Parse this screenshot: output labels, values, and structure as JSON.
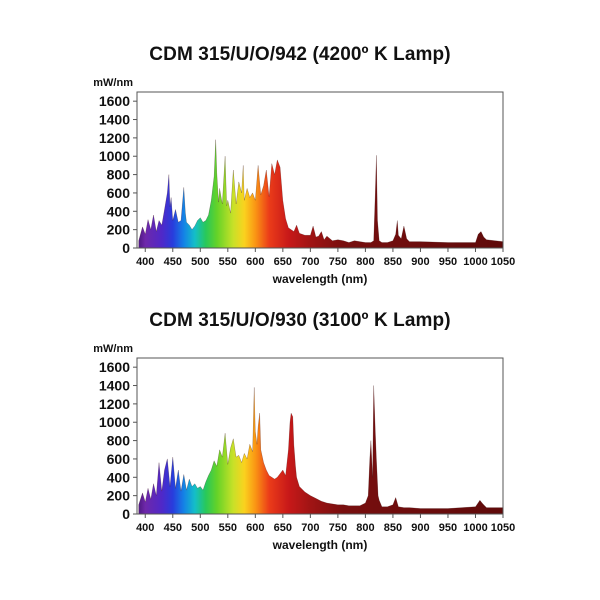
{
  "chart_data": [
    {
      "type": "area",
      "title": "CDM 315/U/O/942 (4200º K Lamp)",
      "xlabel": "wavelength (nm)",
      "ylabel": "mW/nm",
      "xlim": [
        385,
        1050
      ],
      "ylim": [
        0,
        1700
      ],
      "xticks": [
        400,
        450,
        500,
        550,
        600,
        650,
        700,
        750,
        800,
        850,
        900,
        950,
        1000,
        1050
      ],
      "yticks": [
        0,
        200,
        400,
        600,
        800,
        1000,
        1200,
        1400,
        1600
      ],
      "grid": false,
      "series": [
        {
          "x": [
            388,
            395,
            400,
            405,
            410,
            415,
            420,
            425,
            430,
            435,
            440,
            443,
            445,
            447,
            450,
            455,
            460,
            465,
            468,
            470,
            473,
            475,
            480,
            485,
            490,
            495,
            500,
            505,
            510,
            515,
            520,
            525,
            528,
            530,
            533,
            535,
            540,
            545,
            548,
            550,
            555,
            560,
            565,
            570,
            575,
            578,
            580,
            585,
            590,
            595,
            600,
            605,
            610,
            615,
            620,
            625,
            630,
            635,
            640,
            645,
            650,
            655,
            660,
            665,
            670,
            675,
            680,
            690,
            700,
            705,
            710,
            715,
            720,
            725,
            730,
            740,
            750,
            760,
            770,
            780,
            790,
            800,
            810,
            815,
            818,
            820,
            822,
            825,
            830,
            840,
            850,
            855,
            858,
            860,
            865,
            870,
            875,
            880,
            900,
            950,
            1000,
            1005,
            1010,
            1015,
            1020,
            1050
          ],
          "values": [
            80,
            230,
            150,
            310,
            200,
            360,
            180,
            300,
            250,
            420,
            600,
            800,
            450,
            550,
            300,
            420,
            280,
            300,
            520,
            660,
            380,
            280,
            250,
            200,
            240,
            300,
            330,
            280,
            300,
            360,
            520,
            780,
            1180,
            820,
            500,
            650,
            480,
            1000,
            460,
            520,
            380,
            850,
            480,
            720,
            600,
            900,
            520,
            650,
            550,
            600,
            520,
            900,
            580,
            680,
            850,
            560,
            920,
            800,
            960,
            880,
            520,
            320,
            220,
            200,
            180,
            250,
            160,
            140,
            140,
            240,
            120,
            130,
            180,
            90,
            130,
            80,
            90,
            80,
            60,
            80,
            70,
            60,
            60,
            80,
            600,
            1010,
            300,
            80,
            60,
            60,
            80,
            150,
            300,
            140,
            100,
            240,
            100,
            70,
            70,
            60,
            60,
            150,
            180,
            120,
            90,
            70
          ]
        }
      ]
    },
    {
      "type": "area",
      "title": "CDM 315/U/O/930 (3100º K Lamp)",
      "xlabel": "wavelength (nm)",
      "ylabel": "mW/nm",
      "xlim": [
        385,
        1050
      ],
      "ylim": [
        0,
        1700
      ],
      "xticks": [
        400,
        450,
        500,
        550,
        600,
        650,
        700,
        750,
        800,
        850,
        900,
        950,
        1000,
        1050
      ],
      "yticks": [
        0,
        200,
        400,
        600,
        800,
        1000,
        1200,
        1400,
        1600
      ],
      "grid": false,
      "series": [
        {
          "x": [
            388,
            395,
            400,
            405,
            410,
            415,
            420,
            425,
            430,
            435,
            440,
            445,
            450,
            455,
            460,
            465,
            470,
            475,
            480,
            485,
            490,
            495,
            500,
            505,
            510,
            515,
            520,
            525,
            530,
            535,
            540,
            545,
            550,
            555,
            560,
            565,
            570,
            575,
            580,
            585,
            590,
            595,
            598,
            600,
            603,
            605,
            608,
            610,
            615,
            620,
            625,
            630,
            635,
            640,
            645,
            650,
            655,
            660,
            663,
            665,
            668,
            670,
            673,
            675,
            680,
            690,
            700,
            710,
            720,
            730,
            740,
            750,
            760,
            770,
            780,
            790,
            800,
            805,
            808,
            810,
            813,
            815,
            818,
            820,
            823,
            825,
            830,
            840,
            850,
            855,
            860,
            870,
            880,
            900,
            950,
            1000,
            1008,
            1012,
            1015,
            1020,
            1050
          ],
          "values": [
            100,
            230,
            130,
            280,
            160,
            330,
            200,
            560,
            250,
            480,
            600,
            300,
            620,
            280,
            480,
            250,
            430,
            260,
            380,
            300,
            330,
            280,
            300,
            260,
            350,
            420,
            480,
            580,
            520,
            700,
            620,
            880,
            540,
            720,
            820,
            620,
            640,
            560,
            660,
            600,
            760,
            680,
            1380,
            900,
            760,
            950,
            1100,
            700,
            560,
            480,
            420,
            400,
            380,
            400,
            440,
            480,
            420,
            700,
            1000,
            1100,
            1060,
            750,
            520,
            400,
            300,
            240,
            200,
            170,
            140,
            120,
            110,
            100,
            100,
            90,
            90,
            90,
            120,
            200,
            600,
            800,
            400,
            1400,
            900,
            600,
            200,
            150,
            80,
            80,
            100,
            180,
            80,
            70,
            70,
            60,
            60,
            80,
            150,
            120,
            100,
            70,
            70
          ]
        }
      ]
    }
  ]
}
